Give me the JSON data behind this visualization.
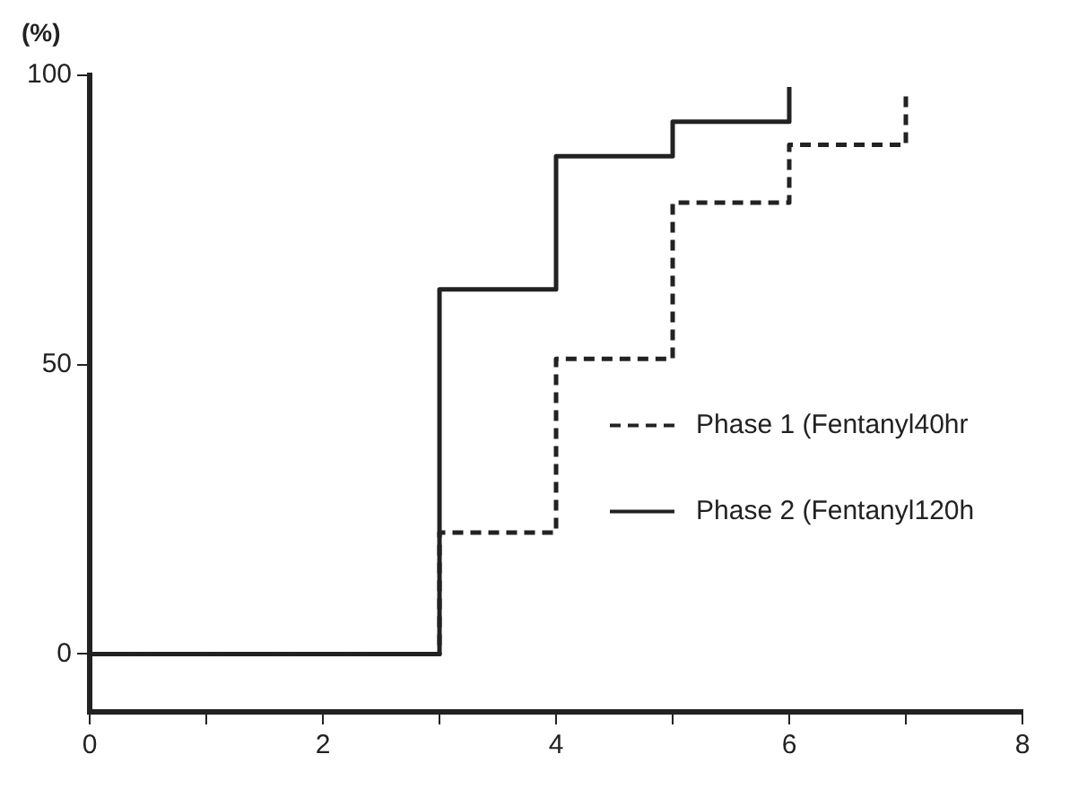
{
  "chart_data": {
    "type": "step",
    "ylabel": "(%)",
    "xlim": [
      0,
      8
    ],
    "xticks": [
      0,
      {
        "value": 1,
        "label": null
      },
      2,
      {
        "value": 3,
        "label": null
      },
      4,
      {
        "value": 5,
        "label": null
      },
      6,
      {
        "value": 7,
        "label": null
      },
      8
    ],
    "ylim": [
      -10,
      100
    ],
    "yticks": [
      0,
      50,
      100
    ],
    "grid": false,
    "legend": "right",
    "marker": "none",
    "series": [
      {
        "name": "Phase 1 (Fentanyl40hr",
        "color": "#222222",
        "line_style": "dashed",
        "x": [
          0,
          3,
          4,
          5,
          6,
          7
        ],
        "values": [
          0,
          21,
          51,
          78,
          88,
          97
        ]
      },
      {
        "name": "Phase 2 (Fentanyl120h",
        "color": "#222222",
        "line_style": "solid",
        "x": [
          0,
          3,
          4,
          5,
          6
        ],
        "values": [
          0,
          63,
          86,
          92,
          98
        ]
      }
    ]
  }
}
